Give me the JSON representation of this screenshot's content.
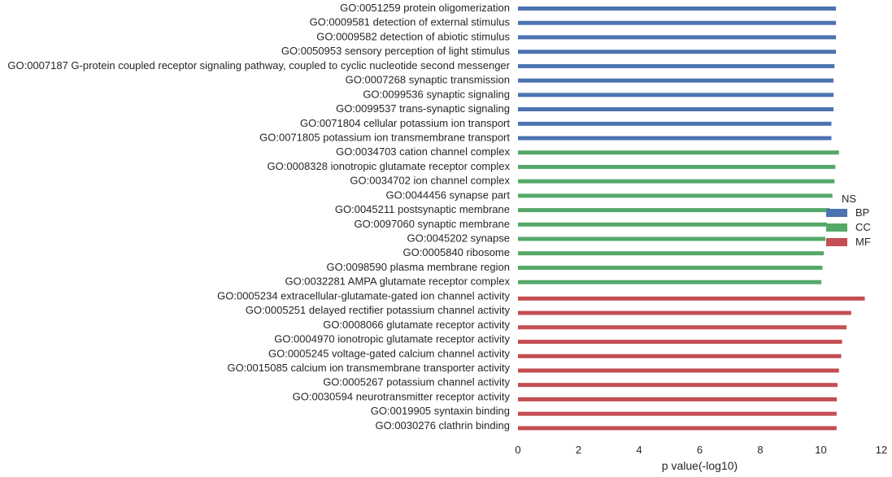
{
  "chart_data": {
    "type": "bar",
    "orientation": "horizontal",
    "xlabel": "p value(-log10)",
    "ylabel": "",
    "xlim": [
      0,
      12
    ],
    "x_ticks": [
      "0",
      "2",
      "4",
      "6",
      "8",
      "10",
      "12"
    ],
    "grid": false,
    "legend": {
      "title": "NS",
      "placement": "right",
      "entries": [
        {
          "name": "BP",
          "color": "#4c72b0"
        },
        {
          "name": "CC",
          "color": "#55a868"
        },
        {
          "name": "MF",
          "color": "#c44e52"
        }
      ]
    },
    "categories": [
      "GO:0051259 protein oligomerization",
      "GO:0009581 detection of external stimulus",
      "GO:0009582 detection of abiotic stimulus",
      "GO:0050953 sensory perception of light stimulus",
      "GO:0007187 G-protein coupled receptor signaling pathway, coupled to cyclic nucleotide second messenger",
      "GO:0007268 synaptic transmission",
      "GO:0099536 synaptic signaling",
      "GO:0099537 trans-synaptic signaling",
      "GO:0071804 cellular potassium ion transport",
      "GO:0071805 potassium ion transmembrane transport",
      "GO:0034703 cation channel complex",
      "GO:0008328 ionotropic glutamate receptor complex",
      "GO:0034702 ion channel complex",
      "GO:0044456 synapse part",
      "GO:0045211 postsynaptic membrane",
      "GO:0097060 synaptic membrane",
      "GO:0045202 synapse",
      "GO:0005840 ribosome",
      "GO:0098590 plasma membrane region",
      "GO:0032281 AMPA glutamate receptor complex",
      "GO:0005234 extracellular-glutamate-gated ion channel activity",
      "GO:0005251 delayed rectifier potassium channel activity",
      "GO:0008066 glutamate receptor activity",
      "GO:0004970 ionotropic glutamate receptor activity",
      "GO:0005245 voltage-gated calcium channel activity",
      "GO:0015085 calcium ion transmembrane transporter activity",
      "GO:0005267 potassium channel activity",
      "GO:0030594 neurotransmitter receptor activity",
      "GO:0019905 syntaxin binding",
      "GO:0030276 clathrin binding"
    ],
    "values": [
      10.5,
      10.5,
      10.5,
      10.5,
      10.45,
      10.42,
      10.42,
      10.42,
      10.35,
      10.35,
      10.6,
      10.48,
      10.45,
      10.38,
      10.3,
      10.2,
      10.15,
      10.1,
      10.05,
      10.02,
      11.45,
      11.0,
      10.85,
      10.7,
      10.67,
      10.6,
      10.55,
      10.53,
      10.52,
      10.52
    ],
    "groups": [
      "BP",
      "BP",
      "BP",
      "BP",
      "BP",
      "BP",
      "BP",
      "BP",
      "BP",
      "BP",
      "CC",
      "CC",
      "CC",
      "CC",
      "CC",
      "CC",
      "CC",
      "CC",
      "CC",
      "CC",
      "MF",
      "MF",
      "MF",
      "MF",
      "MF",
      "MF",
      "MF",
      "MF",
      "MF",
      "MF"
    ]
  }
}
